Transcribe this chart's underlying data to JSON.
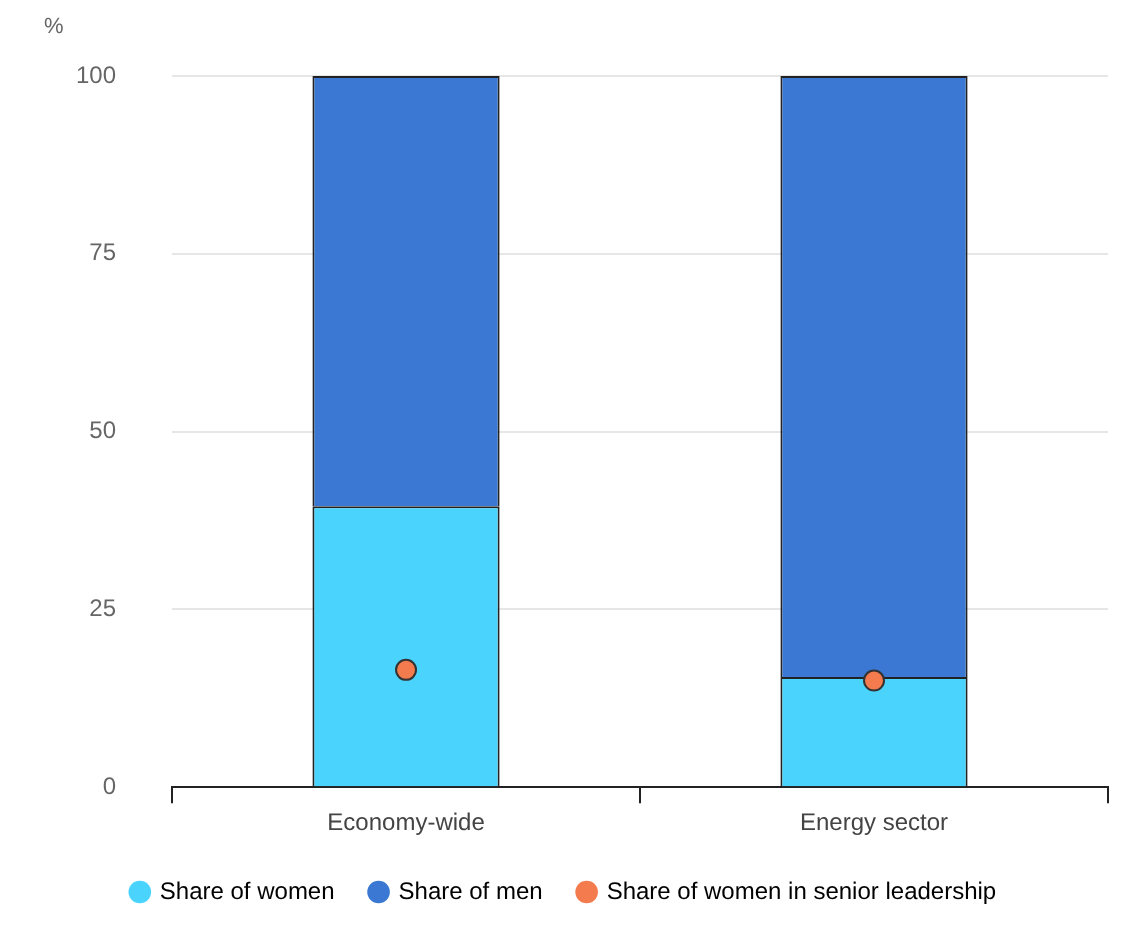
{
  "chart_data": {
    "type": "bar",
    "ylabel": "%",
    "categories": [
      "Economy-wide",
      "Energy sector"
    ],
    "stacked": true,
    "series": [
      {
        "name": "Share of women",
        "color": "#4ad4fd",
        "values": [
          39.5,
          15.5
        ]
      },
      {
        "name": "Share of men",
        "color": "#3b78d3",
        "values": [
          60.5,
          84.5
        ]
      },
      {
        "name": "Share of women in senior leadership",
        "type": "scatter",
        "color": "#f47b4e",
        "x": [
          "Economy-wide",
          "Energy sector"
        ],
        "values": [
          16.5,
          15
        ]
      }
    ],
    "ylim": [
      0,
      100
    ],
    "yticks": [
      0,
      25,
      50,
      75,
      100
    ],
    "grid": "y",
    "legend": "bottom",
    "marker": "circle"
  }
}
